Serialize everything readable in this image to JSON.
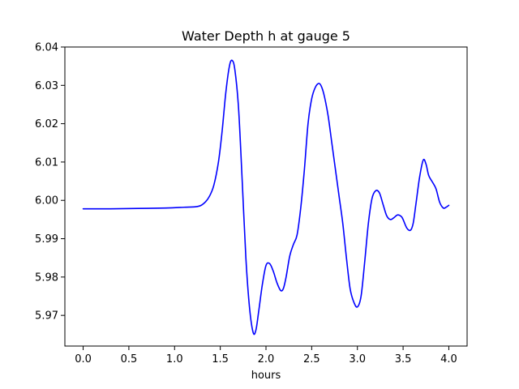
{
  "chart_data": {
    "type": "line",
    "title": "Water Depth h at gauge 5",
    "xlabel": "hours",
    "ylabel": "",
    "xlim": [
      -0.2,
      4.2
    ],
    "ylim": [
      5.962,
      6.04
    ],
    "xticks": [
      0.0,
      0.5,
      1.0,
      1.5,
      2.0,
      2.5,
      3.0,
      3.5,
      4.0
    ],
    "xtick_labels": [
      "0.0",
      "0.5",
      "1.0",
      "1.5",
      "2.0",
      "2.5",
      "3.0",
      "3.5",
      "4.0"
    ],
    "yticks": [
      5.97,
      5.98,
      5.99,
      6.0,
      6.01,
      6.02,
      6.03,
      6.04
    ],
    "ytick_labels": [
      "5.97",
      "5.98",
      "5.99",
      "6.00",
      "6.01",
      "6.02",
      "6.03",
      "6.04"
    ],
    "grid": false,
    "series": [
      {
        "color": "#0000ff",
        "x": [
          0.0,
          0.3,
          0.6,
          0.9,
          1.1,
          1.25,
          1.32,
          1.38,
          1.43,
          1.48,
          1.52,
          1.56,
          1.6,
          1.63,
          1.66,
          1.7,
          1.74,
          1.78,
          1.82,
          1.86,
          1.89,
          1.92,
          1.96,
          2.0,
          2.04,
          2.08,
          2.12,
          2.16,
          2.19,
          2.22,
          2.26,
          2.3,
          2.34,
          2.38,
          2.42,
          2.46,
          2.5,
          2.54,
          2.58,
          2.61,
          2.64,
          2.68,
          2.72,
          2.76,
          2.8,
          2.84,
          2.88,
          2.92,
          2.96,
          3.0,
          3.04,
          3.08,
          3.12,
          3.16,
          3.2,
          3.24,
          3.28,
          3.32,
          3.36,
          3.4,
          3.44,
          3.48,
          3.5,
          3.54,
          3.58,
          3.61,
          3.64,
          3.68,
          3.72,
          3.75,
          3.78,
          3.82,
          3.86,
          3.9,
          3.94,
          3.97,
          4.0
        ],
        "y": [
          5.9978,
          5.9978,
          5.9979,
          5.998,
          5.9982,
          5.9984,
          5.9992,
          6.001,
          6.004,
          6.01,
          6.018,
          6.028,
          6.035,
          6.0365,
          6.034,
          6.024,
          6.005,
          5.985,
          5.972,
          5.9655,
          5.9662,
          5.971,
          5.978,
          5.983,
          5.9835,
          5.9815,
          5.9785,
          5.9765,
          5.977,
          5.98,
          5.9855,
          5.9885,
          5.991,
          5.998,
          6.008,
          6.02,
          6.0265,
          6.0295,
          6.0305,
          6.0295,
          6.027,
          6.022,
          6.015,
          6.008,
          6.001,
          5.994,
          5.985,
          5.977,
          5.9735,
          5.9722,
          5.975,
          5.984,
          5.994,
          6.0005,
          6.0025,
          6.002,
          5.999,
          5.996,
          5.995,
          5.9955,
          5.9962,
          5.9958,
          5.995,
          5.9928,
          5.9922,
          5.994,
          5.999,
          6.006,
          6.0105,
          6.0095,
          6.0065,
          6.0048,
          6.003,
          5.9995,
          5.998,
          5.9982,
          5.9987
        ]
      }
    ]
  }
}
